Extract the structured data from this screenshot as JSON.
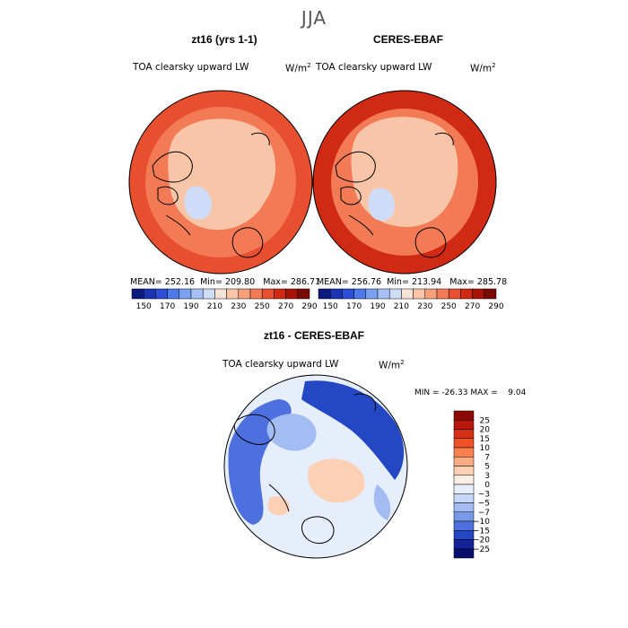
{
  "season": "JJA",
  "chart_data": [
    {
      "type": "heatmap",
      "title": "zt16 (yrs 1-1)",
      "subtitle": "TOA clearsky upward LW",
      "units": "W/m",
      "units_exp": "2",
      "stats": {
        "mean": "252.16",
        "min": "209.80",
        "max": "286.71"
      },
      "colorbar": {
        "levels": [
          "150",
          "170",
          "190",
          "210",
          "230",
          "250",
          "270",
          "290"
        ],
        "colors": [
          "#0d1a80",
          "#1a33b3",
          "#2a4fd6",
          "#4d7ae8",
          "#7aa0f0",
          "#a6c1f5",
          "#cfdcf7",
          "#f7e2d6",
          "#f9c5a8",
          "#f7a07a",
          "#f27b55",
          "#e84f2e",
          "#d12a14",
          "#a81308",
          "#7a0a05"
        ]
      },
      "colormap": {
        "land_arctic": "#f9c5a8",
        "ocean_mid": "#f27b55",
        "periphery": "#e84f2e",
        "ice": "#cfdcf7"
      }
    },
    {
      "type": "heatmap",
      "title": "CERES-EBAF",
      "subtitle": "TOA clearsky upward LW",
      "units": "W/m",
      "units_exp": "2",
      "stats": {
        "mean": "256.76",
        "min": "213.94",
        "max": "285.78"
      },
      "colorbar": {
        "levels": [
          "150",
          "170",
          "190",
          "210",
          "230",
          "250",
          "270",
          "290"
        ],
        "colors": [
          "#0d1a80",
          "#1a33b3",
          "#2a4fd6",
          "#4d7ae8",
          "#7aa0f0",
          "#a6c1f5",
          "#cfdcf7",
          "#f7e2d6",
          "#f9c5a8",
          "#f7a07a",
          "#f27b55",
          "#e84f2e",
          "#d12a14",
          "#a81308",
          "#7a0a05"
        ]
      },
      "colormap": {
        "land_arctic": "#f9c5a8",
        "ocean_mid": "#f27b55",
        "periphery": "#d12a14",
        "ice": "#cfdcf7"
      }
    },
    {
      "type": "heatmap",
      "title": "zt16 - CERES-EBAF",
      "subtitle": "TOA clearsky upward LW",
      "units": "W/m",
      "units_exp": "2",
      "stats": {
        "min_label": "MIN =",
        "min": "-26.33",
        "max_label": "MAX =",
        "max": "9.04"
      },
      "colorbar": {
        "levels": [
          "25",
          "20",
          "15",
          "10",
          "7",
          "5",
          "3",
          "0",
          "−3",
          "−5",
          "−7",
          "−10",
          "−15",
          "−20",
          "−25"
        ],
        "colors": [
          "#8c0a06",
          "#b8180c",
          "#d63018",
          "#ee5226",
          "#f7804d",
          "#fbab82",
          "#fcd0b4",
          "#fbeee4",
          "#e6eefb",
          "#c6d8f7",
          "#a3bdf2",
          "#7898ea",
          "#4d70de",
          "#2447c4",
          "#12239b",
          "#070f6b"
        ]
      },
      "colormap": {
        "neutral": "#e6eefb",
        "negative_strong": "#2447c4",
        "negative_mid": "#4d70de",
        "negative_light": "#a3bdf2",
        "positive_light": "#fcd0b4"
      }
    }
  ]
}
